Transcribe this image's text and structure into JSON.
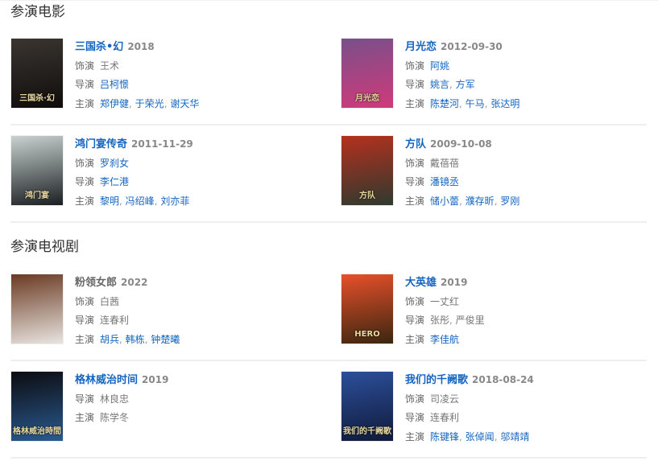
{
  "sections": [
    {
      "title": "参演电影",
      "items": [
        {
          "title": "三国杀•幻",
          "title_link": true,
          "date": "2018",
          "poster_text": "三国杀·幻",
          "poster_colors": [
            "#3a3530",
            "#0f0d0c"
          ],
          "fields": [
            {
              "label": "饰演",
              "people": [
                {
                  "name": "王术",
                  "link": false
                }
              ]
            },
            {
              "label": "导演",
              "people": [
                {
                  "name": "吕柯憬",
                  "link": true
                }
              ]
            },
            {
              "label": "主演",
              "people": [
                {
                  "name": "郑伊健",
                  "link": true
                },
                {
                  "name": "于荣光",
                  "link": true
                },
                {
                  "name": "谢天华",
                  "link": true
                }
              ]
            }
          ]
        },
        {
          "title": "月光恋",
          "title_link": true,
          "date": "2012-09-30",
          "poster_text": "月光恋",
          "poster_colors": [
            "#7a4f8a",
            "#d03a7a"
          ],
          "fields": [
            {
              "label": "饰演",
              "people": [
                {
                  "name": "阿姚",
                  "link": true
                }
              ]
            },
            {
              "label": "导演",
              "people": [
                {
                  "name": "姚言",
                  "link": true
                },
                {
                  "name": "方军",
                  "link": true
                }
              ]
            },
            {
              "label": "主演",
              "people": [
                {
                  "name": "陈楚河",
                  "link": true
                },
                {
                  "name": "午马",
                  "link": true
                },
                {
                  "name": "张达明",
                  "link": true
                }
              ]
            }
          ]
        },
        {
          "title": "鸿门宴传奇",
          "title_link": true,
          "date": "2011-11-29",
          "poster_text": "鸿门宴",
          "poster_colors": [
            "#c9d2d0",
            "#1b1f22"
          ],
          "fields": [
            {
              "label": "饰演",
              "people": [
                {
                  "name": "罗刹女",
                  "link": true
                }
              ]
            },
            {
              "label": "导演",
              "people": [
                {
                  "name": "李仁港",
                  "link": true
                }
              ]
            },
            {
              "label": "主演",
              "people": [
                {
                  "name": "黎明",
                  "link": true
                },
                {
                  "name": "冯绍峰",
                  "link": true
                },
                {
                  "name": "刘亦菲",
                  "link": true
                }
              ]
            }
          ]
        },
        {
          "title": "方队",
          "title_link": true,
          "date": "2009-10-08",
          "poster_text": "方队",
          "poster_colors": [
            "#b5301f",
            "#2e3a2e"
          ],
          "fields": [
            {
              "label": "饰演",
              "people": [
                {
                  "name": "戴蓓蓓",
                  "link": false
                }
              ]
            },
            {
              "label": "导演",
              "people": [
                {
                  "name": "潘镜丞",
                  "link": true
                }
              ]
            },
            {
              "label": "主演",
              "people": [
                {
                  "name": "储小蕾",
                  "link": true
                },
                {
                  "name": "濮存昕",
                  "link": true
                },
                {
                  "name": "罗刚",
                  "link": true
                }
              ]
            }
          ]
        }
      ]
    },
    {
      "title": "参演电视剧",
      "items": [
        {
          "title": "粉领女郎",
          "title_link": false,
          "date": "2022",
          "poster_text": "",
          "poster_colors": [
            "#6a3a22",
            "#e8e4e0"
          ],
          "fields": [
            {
              "label": "饰演",
              "people": [
                {
                  "name": "白茜",
                  "link": false
                }
              ]
            },
            {
              "label": "导演",
              "people": [
                {
                  "name": "连春利",
                  "link": false
                }
              ]
            },
            {
              "label": "主演",
              "people": [
                {
                  "name": "胡兵",
                  "link": true
                },
                {
                  "name": "韩栋",
                  "link": true
                },
                {
                  "name": "钟楚曦",
                  "link": true
                }
              ]
            }
          ]
        },
        {
          "title": "大英雄",
          "title_link": true,
          "date": "2019",
          "poster_text": "HERO",
          "poster_colors": [
            "#e8502a",
            "#3a2610"
          ],
          "fields": [
            {
              "label": "饰演",
              "people": [
                {
                  "name": "一丈红",
                  "link": false
                }
              ]
            },
            {
              "label": "导演",
              "people": [
                {
                  "name": "张彤",
                  "link": false
                },
                {
                  "name": "严俊里",
                  "link": false
                }
              ]
            },
            {
              "label": "主演",
              "people": [
                {
                  "name": "李佳航",
                  "link": true
                }
              ]
            }
          ]
        },
        {
          "title": "格林威治时间",
          "title_link": true,
          "date": "2019",
          "poster_text": "格林威治時間",
          "poster_colors": [
            "#0c0c10",
            "#2a5a90"
          ],
          "fields": [
            {
              "label": "导演",
              "people": [
                {
                  "name": "林良忠",
                  "link": false
                }
              ]
            },
            {
              "label": "主演",
              "people": [
                {
                  "name": "陈学冬",
                  "link": false
                }
              ]
            }
          ]
        },
        {
          "title": "我们的千阙歌",
          "title_link": true,
          "date": "2018-08-24",
          "poster_text": "我们的千阙歌",
          "poster_colors": [
            "#2c4f9a",
            "#101a3a"
          ],
          "fields": [
            {
              "label": "饰演",
              "people": [
                {
                  "name": "司凌云",
                  "link": false
                }
              ]
            },
            {
              "label": "导演",
              "people": [
                {
                  "name": "连春利",
                  "link": false
                }
              ]
            },
            {
              "label": "主演",
              "people": [
                {
                  "name": "陈键锋",
                  "link": true
                },
                {
                  "name": "张倬闻",
                  "link": true
                },
                {
                  "name": "邬靖靖",
                  "link": true
                }
              ]
            }
          ]
        }
      ]
    }
  ]
}
